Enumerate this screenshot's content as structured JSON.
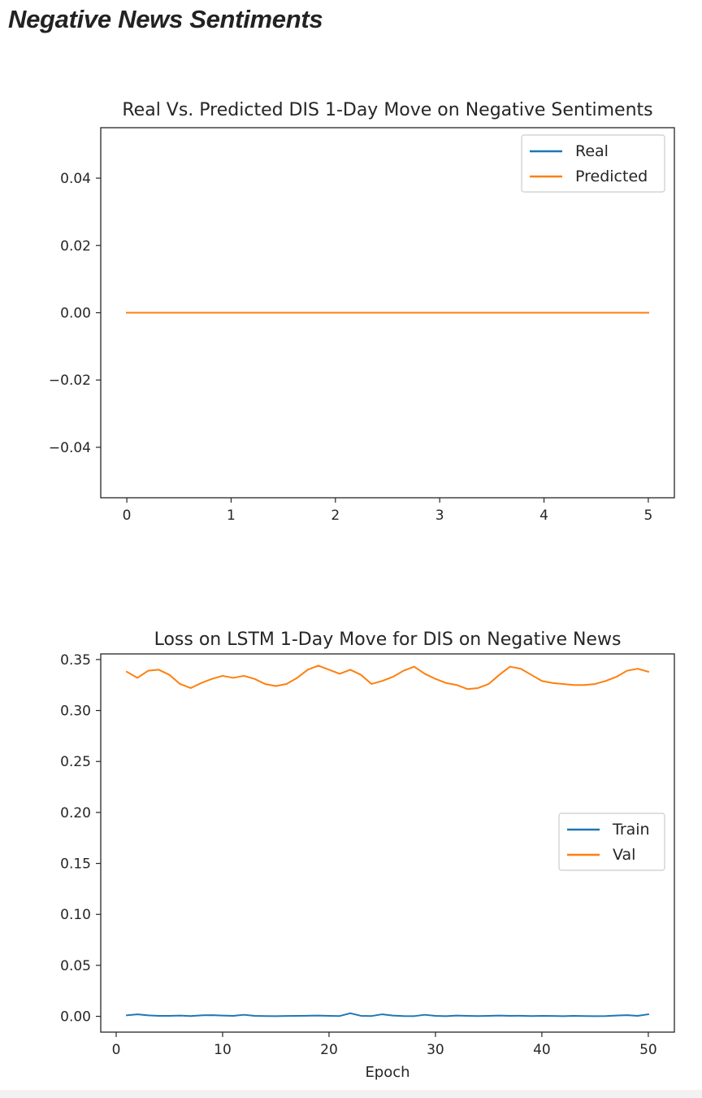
{
  "page": {
    "heading": "Negative News Sentiments"
  },
  "chart_data": [
    {
      "type": "line",
      "title": "Real Vs. Predicted DIS 1-Day Move on Negative Sentiments",
      "xlabel": "",
      "ylabel": "",
      "xlim": [
        -0.25,
        5.25
      ],
      "ylim": [
        -0.055,
        0.055
      ],
      "xticks": [
        0,
        1,
        2,
        3,
        4,
        5
      ],
      "xtick_labels": [
        "0",
        "1",
        "2",
        "3",
        "4",
        "5"
      ],
      "yticks": [
        0.04,
        0.02,
        0.0,
        -0.02,
        -0.04
      ],
      "ytick_labels": [
        "0.04",
        "0.02",
        "0.00",
        "−0.02",
        "−0.04"
      ],
      "grid": false,
      "legend_position": "upper right",
      "x": [
        0,
        1,
        2,
        3,
        4,
        5
      ],
      "series": [
        {
          "name": "Real",
          "color": "#1f77b4",
          "values": [
            0,
            0,
            0,
            0,
            0,
            0
          ]
        },
        {
          "name": "Predicted",
          "color": "#ff7f0e",
          "values": [
            0,
            0,
            0,
            0,
            0,
            0
          ]
        }
      ]
    },
    {
      "type": "line",
      "title": "Loss on LSTM 1-Day Move for DIS on Negative News",
      "xlabel": "Epoch",
      "ylabel": "",
      "xlim": [
        -1.45,
        52.45
      ],
      "ylim": [
        -0.0155,
        0.3555
      ],
      "xticks": [
        0,
        10,
        20,
        30,
        40,
        50
      ],
      "xtick_labels": [
        "0",
        "10",
        "20",
        "30",
        "40",
        "50"
      ],
      "yticks": [
        0.35,
        0.3,
        0.25,
        0.2,
        0.15,
        0.1,
        0.05,
        0.0
      ],
      "ytick_labels": [
        "0.35",
        "0.30",
        "0.25",
        "0.20",
        "0.15",
        "0.10",
        "0.05",
        "0.00"
      ],
      "grid": false,
      "legend_position": "center right",
      "x": [
        1,
        2,
        3,
        4,
        5,
        6,
        7,
        8,
        9,
        10,
        11,
        12,
        13,
        14,
        15,
        16,
        17,
        18,
        19,
        20,
        21,
        22,
        23,
        24,
        25,
        26,
        27,
        28,
        29,
        30,
        31,
        32,
        33,
        34,
        35,
        36,
        37,
        38,
        39,
        40,
        41,
        42,
        43,
        44,
        45,
        46,
        47,
        48,
        49,
        50
      ],
      "series": [
        {
          "name": "Train",
          "color": "#1f77b4",
          "values": [
            0.001,
            0.002,
            0.001,
            0.0005,
            0.0005,
            0.0008,
            0.0003,
            0.001,
            0.0012,
            0.0008,
            0.0005,
            0.0015,
            0.0005,
            0.0003,
            0.0002,
            0.0004,
            0.0005,
            0.0006,
            0.0008,
            0.0005,
            0.0003,
            0.003,
            0.0005,
            0.0003,
            0.002,
            0.0008,
            0.0003,
            0.0002,
            0.0015,
            0.0005,
            0.0002,
            0.0008,
            0.0005,
            0.0003,
            0.0005,
            0.0008,
            0.0005,
            0.0006,
            0.0003,
            0.0005,
            0.0004,
            0.0002,
            0.0005,
            0.0003,
            0.0002,
            0.0003,
            0.0008,
            0.0012,
            0.0005,
            0.002
          ]
        },
        {
          "name": "Val",
          "color": "#ff7f0e",
          "values": [
            0.338,
            0.332,
            0.339,
            0.34,
            0.335,
            0.326,
            0.322,
            0.327,
            0.331,
            0.334,
            0.332,
            0.334,
            0.331,
            0.326,
            0.324,
            0.326,
            0.332,
            0.34,
            0.344,
            0.34,
            0.336,
            0.34,
            0.335,
            0.326,
            0.329,
            0.333,
            0.339,
            0.343,
            0.336,
            0.331,
            0.327,
            0.325,
            0.321,
            0.322,
            0.326,
            0.335,
            0.343,
            0.341,
            0.335,
            0.329,
            0.327,
            0.326,
            0.325,
            0.325,
            0.326,
            0.329,
            0.333,
            0.339,
            0.341,
            0.338
          ]
        }
      ]
    }
  ]
}
